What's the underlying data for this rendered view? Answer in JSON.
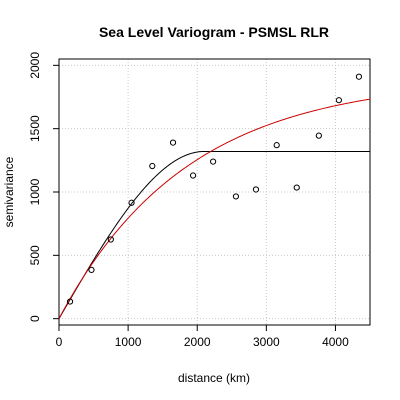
{
  "chart_data": {
    "type": "scatter",
    "title": "Sea Level Variogram - PSMSL RLR",
    "xlabel": "distance (km)",
    "ylabel": "semivariance",
    "xlim": [
      0,
      4500
    ],
    "ylim": [
      -50,
      2050
    ],
    "x_ticks": [
      0,
      1000,
      2000,
      3000,
      4000
    ],
    "y_ticks": [
      0,
      500,
      1000,
      1500,
      2000
    ],
    "grid": true,
    "points": [
      {
        "x": 160,
        "y": 135
      },
      {
        "x": 470,
        "y": 385
      },
      {
        "x": 750,
        "y": 625
      },
      {
        "x": 1050,
        "y": 915
      },
      {
        "x": 1350,
        "y": 1205
      },
      {
        "x": 1650,
        "y": 1390
      },
      {
        "x": 1940,
        "y": 1130
      },
      {
        "x": 2230,
        "y": 1240
      },
      {
        "x": 2560,
        "y": 965
      },
      {
        "x": 2850,
        "y": 1020
      },
      {
        "x": 3150,
        "y": 1370
      },
      {
        "x": 3440,
        "y": 1035
      },
      {
        "x": 3760,
        "y": 1445
      },
      {
        "x": 4050,
        "y": 1725
      },
      {
        "x": 4340,
        "y": 1910
      }
    ],
    "fitted_curves": [
      {
        "color": "#000000",
        "model": "spherical",
        "nugget": 0,
        "sill": 1320,
        "range": 2100
      },
      {
        "color": "#cc0000",
        "model": "exponential",
        "nugget": 0,
        "sill": 1900,
        "range": 1850
      }
    ],
    "colors": {
      "points": "#000000",
      "grid": "#c8c8c8",
      "axis": "#000000"
    }
  }
}
